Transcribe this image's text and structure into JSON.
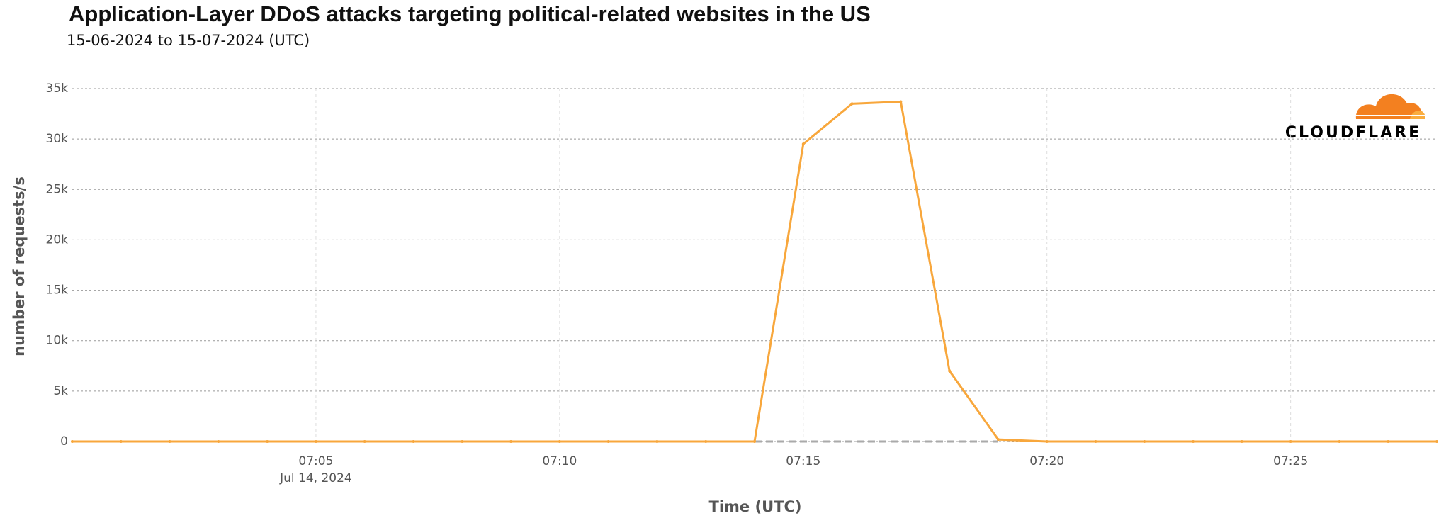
{
  "chart_data": {
    "type": "line",
    "title": "Application-Layer DDoS attacks targeting political-related websites in the US",
    "subtitle": "15-06-2024 to 15-07-2024 (UTC)",
    "x_label": "Time (UTC)",
    "y_label": "number of requests/s",
    "x_date_label": "Jul 14, 2024",
    "logo_text": "CLOUDFLARE",
    "x": [
      "07:00",
      "07:01",
      "07:02",
      "07:03",
      "07:04",
      "07:05",
      "07:06",
      "07:07",
      "07:08",
      "07:09",
      "07:10",
      "07:11",
      "07:12",
      "07:13",
      "07:14",
      "07:15",
      "07:16",
      "07:17",
      "07:18",
      "07:19",
      "07:20",
      "07:21",
      "07:22",
      "07:23",
      "07:24",
      "07:25",
      "07:26",
      "07:27",
      "07:28"
    ],
    "series": [
      {
        "color": "#f8a73c",
        "values": [
          0,
          0,
          0,
          0,
          0,
          0,
          0,
          0,
          0,
          0,
          0,
          0,
          0,
          0,
          0,
          29500,
          33500,
          33700,
          7000,
          200,
          0,
          0,
          0,
          0,
          0,
          0,
          0,
          0,
          0
        ]
      },
      {
        "color": "#aaaaaa",
        "dashed": true,
        "values": [
          null,
          null,
          null,
          null,
          null,
          null,
          null,
          null,
          null,
          null,
          null,
          null,
          null,
          null,
          0,
          0,
          0,
          0,
          0,
          0,
          null,
          null,
          null,
          null,
          null,
          null,
          null,
          null,
          null
        ]
      }
    ],
    "xlim": [
      "07:00",
      "07:28"
    ],
    "xticks": [
      "07:05",
      "07:10",
      "07:15",
      "07:20",
      "07:25"
    ],
    "ylim": [
      0,
      35000
    ],
    "yticks": [
      0,
      {
        "value": 5000,
        "label": "5k"
      },
      {
        "value": 10000,
        "label": "10k"
      },
      {
        "value": 15000,
        "label": "15k"
      },
      {
        "value": 20000,
        "label": "20k"
      },
      {
        "value": 25000,
        "label": "25k"
      },
      {
        "value": 30000,
        "label": "30k"
      },
      {
        "value": 35000,
        "label": "35k"
      }
    ],
    "grid": true
  }
}
